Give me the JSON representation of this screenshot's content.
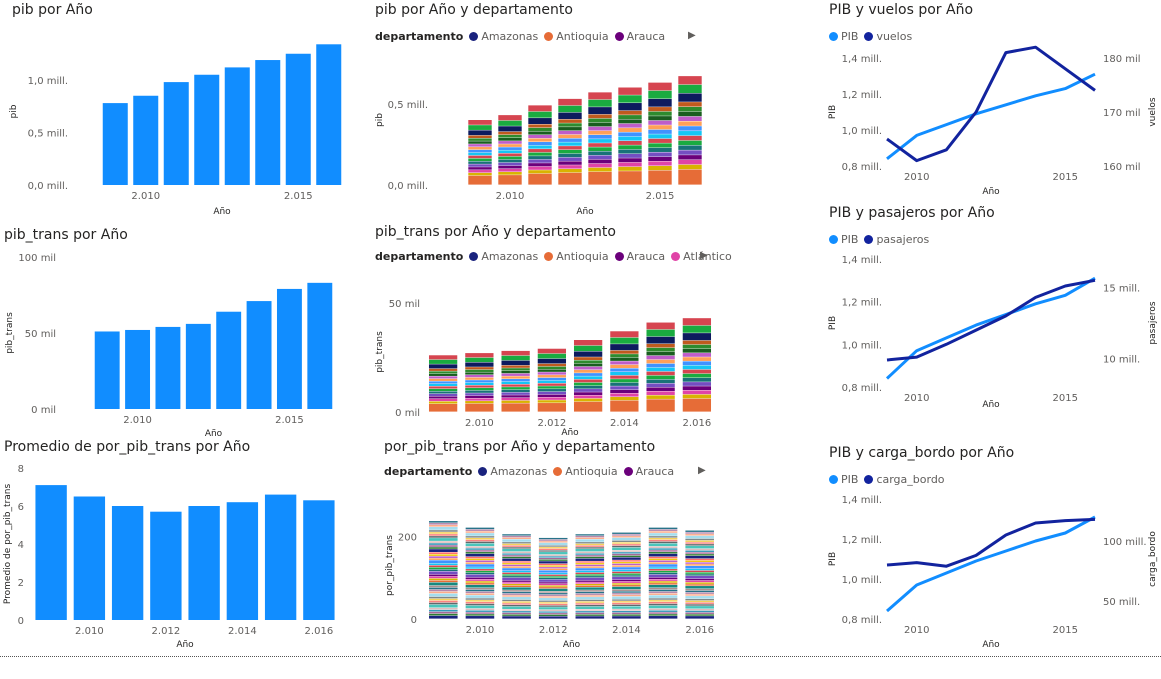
{
  "panels": [
    {
      "title": "pib por Año"
    },
    {
      "title": "pib por Año y departamento",
      "legend_title": "departamento",
      "legend": [
        "Amazonas",
        "Antioquia",
        "Arauca"
      ]
    },
    {
      "title": "PIB y vuelos por Año",
      "legend": [
        "PIB",
        "vuelos"
      ]
    },
    {
      "title": "pib_trans por Año"
    },
    {
      "title": "pib_trans por Año y departamento",
      "legend_title": "departamento",
      "legend": [
        "Amazonas",
        "Antioquia",
        "Arauca",
        "Atlántico"
      ]
    },
    {
      "title": "PIB y pasajeros por Año",
      "legend": [
        "PIB",
        "pasajeros"
      ]
    },
    {
      "title": "Promedio de por_pib_trans por Año"
    },
    {
      "title": "por_pib_trans por Año y departamento",
      "legend_title": "departamento",
      "legend": [
        "Amazonas",
        "Antioquia",
        "Arauca"
      ]
    },
    {
      "title": "PIB y carga_bordo por Año",
      "legend": [
        "PIB",
        "carga_bordo"
      ]
    }
  ],
  "legend_colors": {
    "Amazonas": "#1a237e",
    "Antioquia": "#e66c37",
    "Arauca": "#6b007b",
    "Atlántico": "#e044a7",
    "PIB": "#118dff",
    "series2": "#12239e"
  },
  "chart_data": [
    {
      "type": "bar",
      "title": "pib por Año",
      "xlabel": "Año",
      "ylabel": "pib",
      "categories": [
        2009,
        2010,
        2011,
        2012,
        2013,
        2014,
        2015,
        2016
      ],
      "values": [
        0.78,
        0.85,
        0.98,
        1.05,
        1.12,
        1.19,
        1.25,
        1.34
      ],
      "yticks": [
        "0,0 mill.",
        "0,5 mill.",
        "1,0 mill."
      ],
      "ytick_values": [
        0,
        0.5,
        1.0
      ],
      "xticks": [
        "2.010",
        "2.015"
      ],
      "xtick_values": [
        2010,
        2015
      ],
      "ylim": [
        0,
        1.4
      ],
      "color": "#118dff"
    },
    {
      "type": "bar",
      "stacked": true,
      "title": "pib por Año y departamento",
      "xlabel": "Año",
      "ylabel": "pib",
      "categories": [
        2009,
        2010,
        2011,
        2012,
        2013,
        2014,
        2015,
        2016
      ],
      "totals": [
        0.4,
        0.43,
        0.49,
        0.53,
        0.57,
        0.6,
        0.63,
        0.67
      ],
      "yticks": [
        "0,0 mill.",
        "0,5 mill."
      ],
      "ytick_values": [
        0,
        0.5
      ],
      "xticks": [
        "2.010",
        "2.015"
      ],
      "xtick_values": [
        2010,
        2015
      ],
      "ylim": [
        0,
        0.8
      ]
    },
    {
      "type": "line",
      "title": "PIB y vuelos por Año",
      "xlabel": "Año",
      "ylabel": "PIB",
      "ylabel2": "vuelos",
      "x": [
        2009,
        2010,
        2011,
        2012,
        2013,
        2014,
        2015,
        2016
      ],
      "series": [
        {
          "name": "PIB",
          "values": [
            0.84,
            0.97,
            1.03,
            1.09,
            1.14,
            1.19,
            1.23,
            1.31
          ],
          "axis": "left",
          "color": "#118dff"
        },
        {
          "name": "vuelos",
          "values": [
            165,
            161,
            163,
            170,
            181,
            182,
            178,
            174
          ],
          "axis": "right",
          "color": "#12239e"
        }
      ],
      "yticks": [
        "0,8 mill.",
        "1,0 mill.",
        "1,2 mill.",
        "1,4 mill."
      ],
      "ytick_values": [
        0.8,
        1.0,
        1.2,
        1.4
      ],
      "ylim": [
        0.8,
        1.4
      ],
      "y2ticks": [
        "160 mil",
        "170 mil",
        "180 mil"
      ],
      "y2tick_values": [
        160,
        170,
        180
      ],
      "y2lim": [
        160,
        180
      ],
      "xticks": [
        "2010",
        "2015"
      ],
      "xtick_values": [
        2010,
        2015
      ]
    },
    {
      "type": "bar",
      "title": "pib_trans por Año",
      "xlabel": "Año",
      "ylabel": "pib_trans",
      "categories": [
        2009,
        2010,
        2011,
        2012,
        2013,
        2014,
        2015,
        2016
      ],
      "values": [
        51,
        52,
        54,
        56,
        64,
        71,
        79,
        83
      ],
      "yticks": [
        "0 mil",
        "50 mil",
        "100 mil"
      ],
      "ytick_values": [
        0,
        50,
        100
      ],
      "xticks": [
        "2.010",
        "2.015"
      ],
      "xtick_values": [
        2010,
        2015
      ],
      "ylim": [
        0,
        100
      ],
      "color": "#118dff"
    },
    {
      "type": "bar",
      "stacked": true,
      "title": "pib_trans por Año y departamento",
      "xlabel": "Año",
      "ylabel": "pib_trans",
      "categories": [
        2009,
        2010,
        2011,
        2012,
        2013,
        2014,
        2015,
        2016
      ],
      "totals": [
        26,
        27,
        28,
        29,
        33,
        37,
        41,
        43
      ],
      "yticks": [
        "0 mil",
        "50 mil"
      ],
      "ytick_values": [
        0,
        50
      ],
      "xticks": [
        "2.010",
        "2.012",
        "2.014",
        "2.016"
      ],
      "xtick_values": [
        2010,
        2012,
        2014,
        2016
      ],
      "ylim": [
        0,
        55
      ]
    },
    {
      "type": "line",
      "title": "PIB y pasajeros por Año",
      "xlabel": "Año",
      "ylabel": "PIB",
      "ylabel2": "pasajeros",
      "x": [
        2009,
        2010,
        2011,
        2012,
        2013,
        2014,
        2015,
        2016
      ],
      "series": [
        {
          "name": "PIB",
          "values": [
            0.84,
            0.97,
            1.03,
            1.09,
            1.14,
            1.19,
            1.23,
            1.31
          ],
          "axis": "left",
          "color": "#118dff"
        },
        {
          "name": "pasajeros",
          "values": [
            9.9,
            10.1,
            11.0,
            12.0,
            13.0,
            14.3,
            15.1,
            15.5
          ],
          "axis": "right",
          "color": "#12239e"
        }
      ],
      "yticks": [
        "0,8 mill.",
        "1,0 mill.",
        "1,2 mill.",
        "1,4 mill."
      ],
      "ytick_values": [
        0.8,
        1.0,
        1.2,
        1.4
      ],
      "ylim": [
        0.8,
        1.4
      ],
      "y2ticks": [
        "10 mill.",
        "15 mill."
      ],
      "y2tick_values": [
        10,
        15
      ],
      "y2lim": [
        8,
        17
      ],
      "xticks": [
        "2010",
        "2015"
      ],
      "xtick_values": [
        2010,
        2015
      ]
    },
    {
      "type": "bar",
      "title": "Promedio de por_pib_trans por Año",
      "xlabel": "Año",
      "ylabel": "Promedio de por_pib_trans",
      "categories": [
        2009,
        2010,
        2011,
        2012,
        2013,
        2014,
        2015,
        2016
      ],
      "values": [
        7.1,
        6.5,
        6.0,
        5.7,
        6.0,
        6.2,
        6.6,
        6.3
      ],
      "yticks": [
        "0",
        "2",
        "4",
        "6",
        "8"
      ],
      "ytick_values": [
        0,
        2,
        4,
        6,
        8
      ],
      "xticks": [
        "2.010",
        "2.012",
        "2.014",
        "2.016"
      ],
      "xtick_values": [
        2010,
        2012,
        2014,
        2016
      ],
      "ylim": [
        0,
        8
      ],
      "color": "#118dff"
    },
    {
      "type": "bar",
      "stacked": true,
      "title": "por_pib_trans por Año y departamento",
      "xlabel": "Año",
      "ylabel": "por_pib_trans",
      "categories": [
        2009,
        2010,
        2011,
        2012,
        2013,
        2014,
        2015,
        2016
      ],
      "totals": [
        238,
        222,
        206,
        197,
        206,
        210,
        222,
        215
      ],
      "yticks": [
        "0",
        "200"
      ],
      "ytick_values": [
        0,
        200
      ],
      "xticks": [
        "2.010",
        "2.012",
        "2.014",
        "2.016"
      ],
      "xtick_values": [
        2010,
        2012,
        2014,
        2016
      ],
      "ylim": [
        0,
        260
      ]
    },
    {
      "type": "line",
      "title": "PIB y carga_bordo por Año",
      "xlabel": "Año",
      "ylabel": "PIB",
      "ylabel2": "carga_bordo",
      "x": [
        2009,
        2010,
        2011,
        2012,
        2013,
        2014,
        2015,
        2016
      ],
      "series": [
        {
          "name": "PIB",
          "values": [
            0.84,
            0.97,
            1.03,
            1.09,
            1.14,
            1.19,
            1.23,
            1.31
          ],
          "axis": "left",
          "color": "#118dff"
        },
        {
          "name": "carga_bordo",
          "values": [
            80,
            82,
            79,
            88,
            105,
            115,
            117,
            118
          ],
          "axis": "right",
          "color": "#12239e"
        }
      ],
      "yticks": [
        "0,8 mill.",
        "1,0 mill.",
        "1,2 mill.",
        "1,4 mill."
      ],
      "ytick_values": [
        0.8,
        1.0,
        1.2,
        1.4
      ],
      "ylim": [
        0.8,
        1.4
      ],
      "y2ticks": [
        "50 mill.",
        "100 mill."
      ],
      "y2tick_values": [
        50,
        100
      ],
      "y2lim": [
        35,
        135
      ],
      "xticks": [
        "2010",
        "2015"
      ],
      "xtick_values": [
        2010,
        2015
      ]
    }
  ]
}
